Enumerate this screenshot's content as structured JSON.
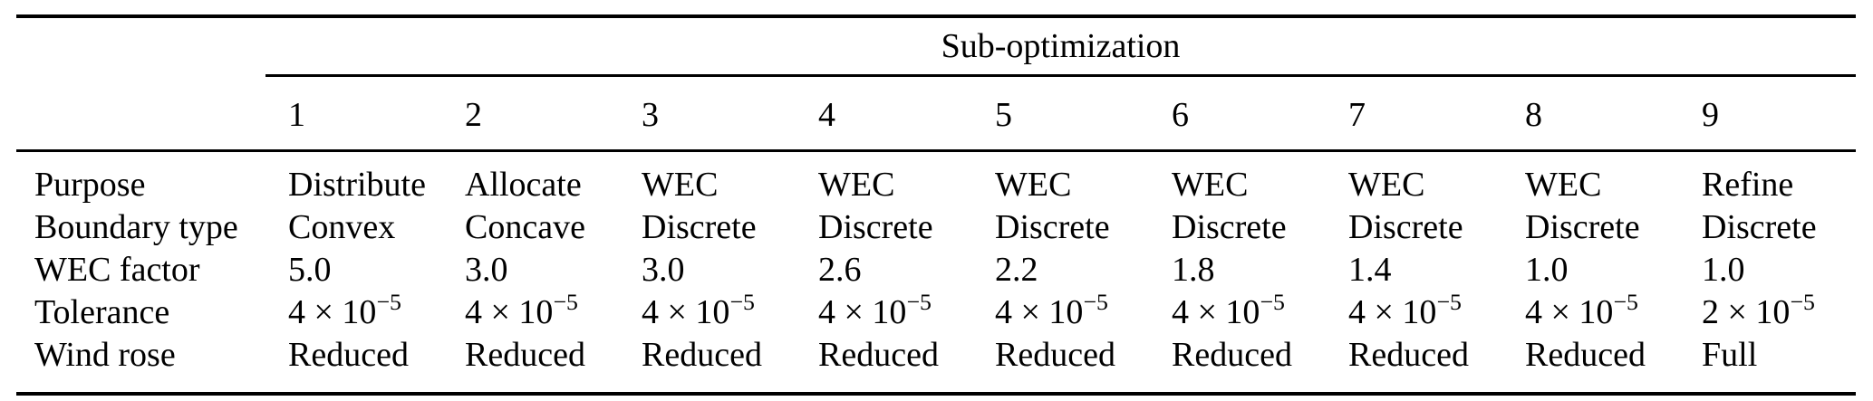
{
  "table": {
    "spanner_label": "Sub-optimization",
    "columns": [
      "1",
      "2",
      "3",
      "4",
      "5",
      "6",
      "7",
      "8",
      "9"
    ],
    "rows": [
      {
        "label": "Purpose",
        "values": [
          "Distribute",
          "Allocate",
          "WEC",
          "WEC",
          "WEC",
          "WEC",
          "WEC",
          "WEC",
          "Refine"
        ]
      },
      {
        "label": "Boundary type",
        "values": [
          "Convex",
          "Concave",
          "Discrete",
          "Discrete",
          "Discrete",
          "Discrete",
          "Discrete",
          "Discrete",
          "Discrete"
        ]
      },
      {
        "label": "WEC factor",
        "values": [
          "5.0",
          "3.0",
          "3.0",
          "2.6",
          "2.2",
          "1.8",
          "1.4",
          "1.0",
          "1.0"
        ]
      },
      {
        "label": "Tolerance",
        "values": [
          {
            "base": "4 × 10",
            "exp": "−5"
          },
          {
            "base": "4 × 10",
            "exp": "−5"
          },
          {
            "base": "4 × 10",
            "exp": "−5"
          },
          {
            "base": "4 × 10",
            "exp": "−5"
          },
          {
            "base": "4 × 10",
            "exp": "−5"
          },
          {
            "base": "4 × 10",
            "exp": "−5"
          },
          {
            "base": "4 × 10",
            "exp": "−5"
          },
          {
            "base": "4 × 10",
            "exp": "−5"
          },
          {
            "base": "2 × 10",
            "exp": "−5"
          }
        ]
      },
      {
        "label": "Wind rose",
        "values": [
          "Reduced",
          "Reduced",
          "Reduced",
          "Reduced",
          "Reduced",
          "Reduced",
          "Reduced",
          "Reduced",
          "Full"
        ]
      }
    ],
    "colors": {
      "text": "#000000",
      "background": "#ffffff",
      "rule": "#000000"
    }
  }
}
